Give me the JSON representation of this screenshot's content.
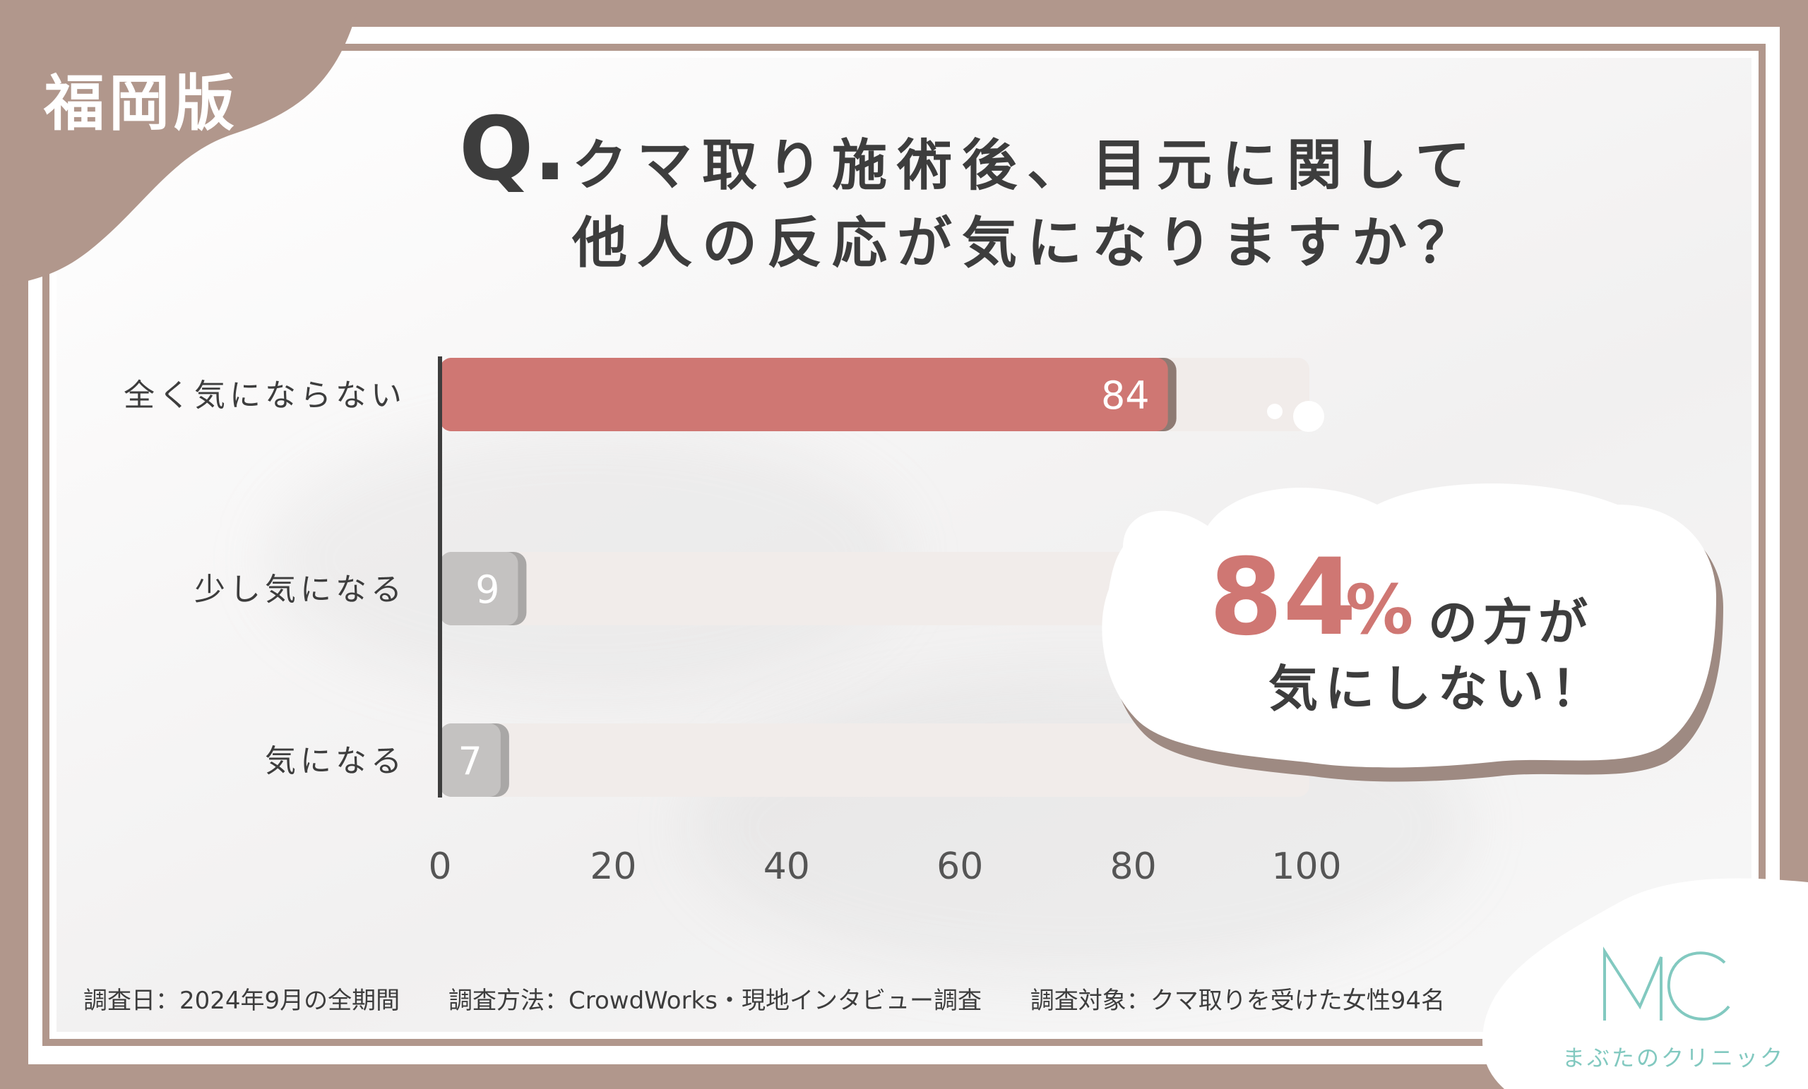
{
  "region_tag": "福岡版",
  "question": {
    "mark": "Q.",
    "line1": "クマ取り施術後、目元に関して",
    "line2": "他人の反応が気になりますか？"
  },
  "chart_data": {
    "type": "bar",
    "orientation": "horizontal",
    "categories": [
      "全く気にならない",
      "少し気になる",
      "気になる"
    ],
    "values": [
      84,
      9,
      7
    ],
    "value_labels": [
      "84",
      "9",
      "7"
    ],
    "xlim": [
      0,
      100
    ],
    "x_ticks": [
      "0",
      "20",
      "40",
      "60",
      "80",
      "100"
    ],
    "highlight_index": 0,
    "colors": {
      "highlight": "#cf7773",
      "other": "#c4c2c1",
      "track": "#f1ecea"
    },
    "grid": false
  },
  "callout": {
    "number": "84",
    "unit": "%",
    "suffix": "の方が",
    "line2": "気にしない！"
  },
  "footer": {
    "date": "調査日：2024年9月の全期間",
    "method": "調査方法：CrowdWorks・現地インタビュー調査",
    "target": "調査対象：クマ取りを受けた女性94名"
  },
  "logo": {
    "name": "まぶたのクリニック",
    "color": "#82c9c0"
  }
}
